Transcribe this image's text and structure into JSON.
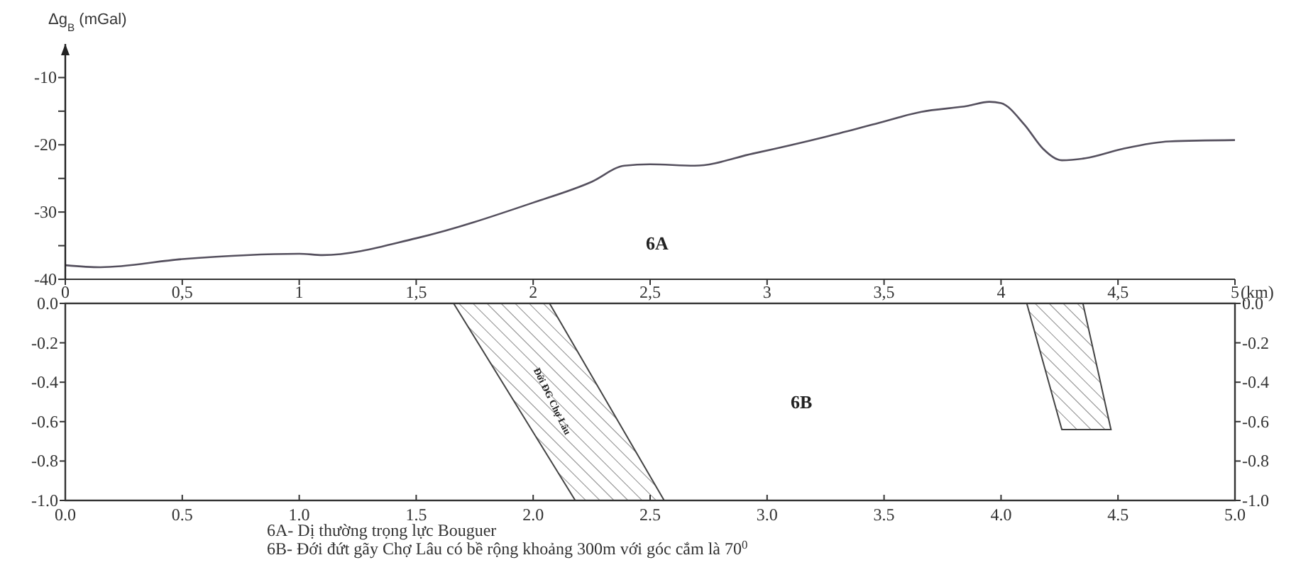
{
  "chart_data": [
    {
      "type": "line",
      "ylabel": "Δg$_{B}$ (mGal)",
      "xlabel": "(km)",
      "xlim": [
        0,
        5
      ],
      "ylim": [
        -40,
        -5
      ],
      "xticks": [
        0,
        {
          "value": 0.5,
          "label": "0,5"
        },
        1,
        {
          "value": 1.5,
          "label": "1,5"
        },
        2,
        {
          "value": 2.5,
          "label": "2,5"
        },
        3,
        {
          "value": 3.5,
          "label": "3,5"
        },
        4,
        {
          "value": 4.5,
          "label": "4,5"
        },
        5
      ],
      "yticks": [
        -40,
        {
          "value": -35,
          "label": null
        },
        -30,
        {
          "value": -25,
          "label": null
        },
        -20,
        {
          "value": -15,
          "label": null
        },
        -10
      ],
      "annotations": [
        "6A"
      ],
      "series": [
        {
          "color": "#55505e",
          "x": [
            0,
            0.15,
            0.5,
            1,
            1.1,
            1.5,
            2,
            2.25,
            2.39,
            2.5,
            2.69,
            2.94,
            3.25,
            3.45,
            3.66,
            3.86,
            3.95,
            4,
            4.1,
            4.18,
            4.26,
            4.36,
            4.52,
            4.72,
            5
          ],
          "values": [
            -37.9,
            -38.2,
            -37,
            -36.2,
            -36.4,
            -33.9,
            -28.6,
            -25.5,
            -23.1,
            -22.9,
            -23.1,
            -21.3,
            -18.8,
            -17,
            -15.1,
            -14.2,
            -13.6,
            -13.8,
            -17,
            -20.6,
            -22.3,
            -22,
            -20.6,
            -19.5,
            -19.3
          ]
        }
      ]
    },
    {
      "type": "area",
      "xlim": [
        0,
        5
      ],
      "ylim": [
        -1,
        0
      ],
      "y2lim": [
        -1,
        0
      ],
      "xticks": [
        {
          "value": 0,
          "label": "0.0"
        },
        {
          "value": 0.5,
          "label": "0.5"
        },
        {
          "value": 1,
          "label": "1.0"
        },
        {
          "value": 1.5,
          "label": "1.5"
        },
        {
          "value": 2,
          "label": "2.0"
        },
        {
          "value": 2.5,
          "label": "2.5"
        },
        {
          "value": 3,
          "label": "3.0"
        },
        {
          "value": 3.5,
          "label": "3.5"
        },
        {
          "value": 4,
          "label": "4.0"
        },
        {
          "value": 4.5,
          "label": "4.5"
        },
        {
          "value": 5,
          "label": "5.0"
        }
      ],
      "yticks": [
        {
          "value": 0,
          "label": "0.0"
        },
        {
          "value": -0.2,
          "label": "-0.2"
        },
        {
          "value": -0.4,
          "label": "-0.4"
        },
        {
          "value": -0.6,
          "label": "-0.6"
        },
        {
          "value": -0.8,
          "label": "-0.8"
        },
        {
          "value": -1,
          "label": "-1.0"
        }
      ],
      "y2ticks": [
        {
          "value": 0,
          "label": "0.0"
        },
        {
          "value": -0.2,
          "label": "-0.2"
        },
        {
          "value": -0.4,
          "label": "-0.4"
        },
        {
          "value": -0.6,
          "label": "-0.6"
        },
        {
          "value": -0.8,
          "label": "-0.8"
        },
        {
          "value": -1,
          "label": "-1.0"
        }
      ],
      "series": [
        {
          "color": "#444444",
          "x": [
            1.66,
            2.07,
            2.56,
            2.18
          ],
          "values": [
            0,
            0,
            -1,
            -1
          ]
        },
        {
          "color": "#444444",
          "x": [
            4.11,
            4.35,
            4.47,
            4.26
          ],
          "values": [
            0,
            0,
            -0.64,
            -0.64
          ]
        }
      ],
      "annotations": [
        "6B",
        "Đới ĐG Chợ Lâu",
        "6A- Dị thường trọng lực Bouguer",
        "6B- Đới đứt gãy Chợ Lâu có bề rộng khoảng 300m với góc cắm là 70$^{0}$"
      ]
    }
  ]
}
